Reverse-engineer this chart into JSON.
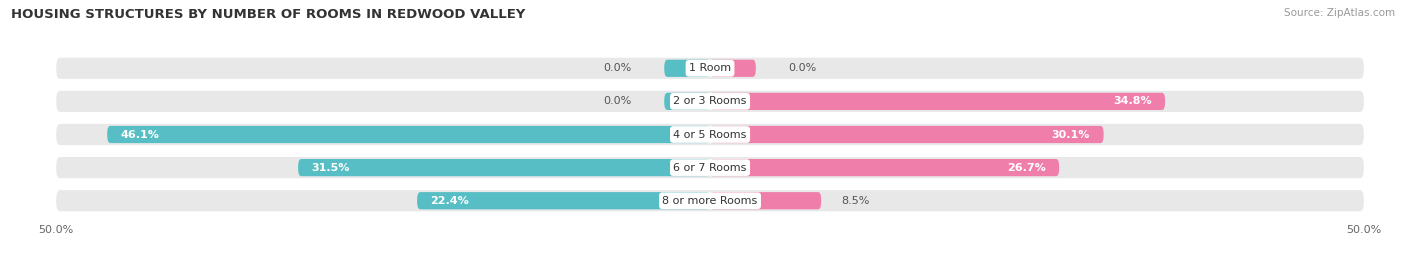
{
  "title": "HOUSING STRUCTURES BY NUMBER OF ROOMS IN REDWOOD VALLEY",
  "source": "Source: ZipAtlas.com",
  "categories": [
    "1 Room",
    "2 or 3 Rooms",
    "4 or 5 Rooms",
    "6 or 7 Rooms",
    "8 or more Rooms"
  ],
  "owner_values": [
    0.0,
    0.0,
    46.1,
    31.5,
    22.4
  ],
  "renter_values": [
    0.0,
    34.8,
    30.1,
    26.7,
    8.5
  ],
  "owner_color": "#56bec4",
  "renter_color": "#f07eab",
  "bg_color": "#e8e8e8",
  "text_dark": "#555555",
  "text_white": "#ffffff",
  "xlim": 50.0,
  "bar_height": 0.52,
  "label_fontsize": 8.0,
  "title_fontsize": 9.5,
  "source_fontsize": 7.5,
  "owner_label_outside_color": "#555555",
  "renter_label_outside_color": "#555555"
}
